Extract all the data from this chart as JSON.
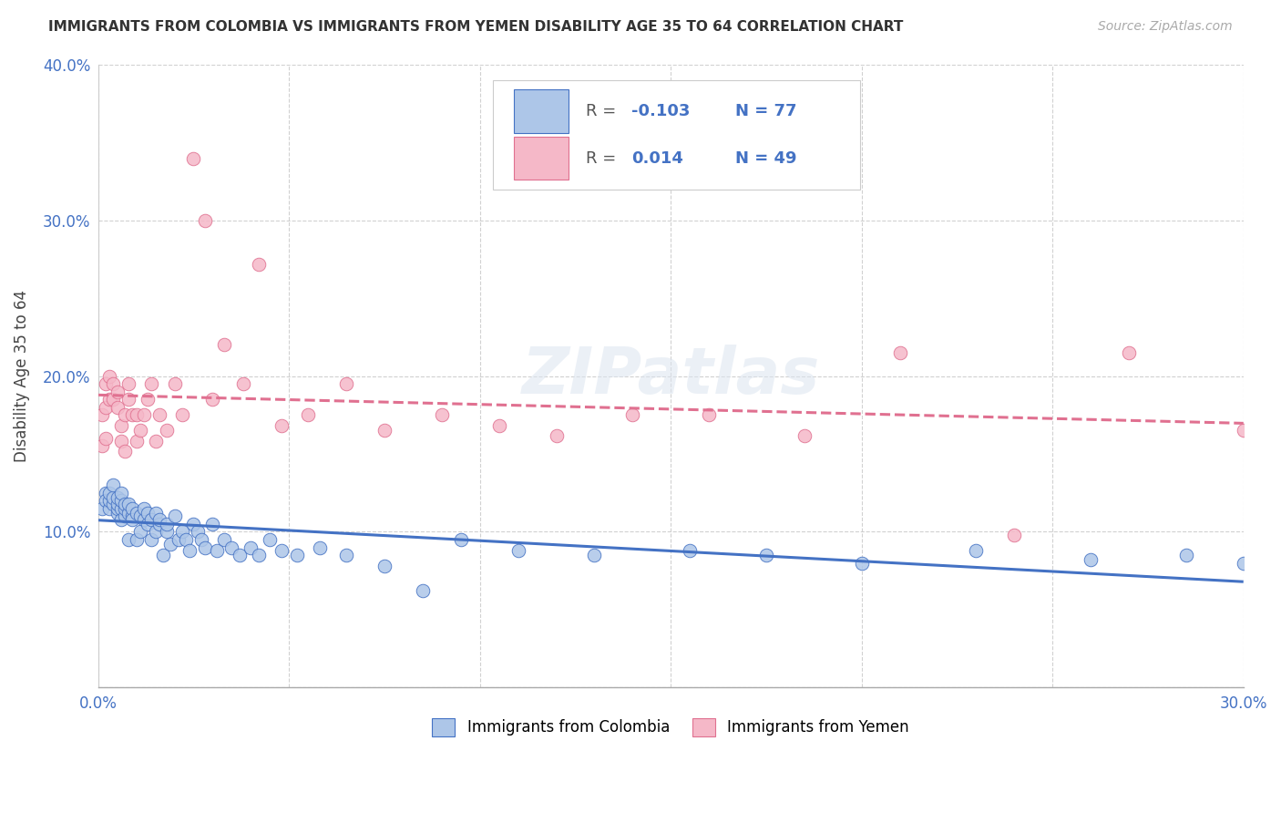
{
  "title": "IMMIGRANTS FROM COLOMBIA VS IMMIGRANTS FROM YEMEN DISABILITY AGE 35 TO 64 CORRELATION CHART",
  "source": "Source: ZipAtlas.com",
  "ylabel": "Disability Age 35 to 64",
  "xlim": [
    0.0,
    0.3
  ],
  "ylim": [
    0.0,
    0.4
  ],
  "xticks": [
    0.0,
    0.05,
    0.1,
    0.15,
    0.2,
    0.25,
    0.3
  ],
  "yticks": [
    0.0,
    0.1,
    0.2,
    0.3,
    0.4
  ],
  "xticklabels": [
    "0.0%",
    "",
    "",
    "",
    "",
    "",
    "30.0%"
  ],
  "yticklabels": [
    "",
    "10.0%",
    "20.0%",
    "30.0%",
    "40.0%"
  ],
  "legend_label1": "Immigrants from Colombia",
  "legend_label2": "Immigrants from Yemen",
  "r1_text": "-0.103",
  "n1_text": "77",
  "r2_text": "0.014",
  "n2_text": "49",
  "color1": "#adc6e8",
  "color2": "#f5b8c8",
  "line_color1": "#4472c4",
  "line_color2": "#e07090",
  "colombia_x": [
    0.001,
    0.002,
    0.002,
    0.003,
    0.003,
    0.003,
    0.004,
    0.004,
    0.004,
    0.005,
    0.005,
    0.005,
    0.005,
    0.006,
    0.006,
    0.006,
    0.006,
    0.007,
    0.007,
    0.007,
    0.008,
    0.008,
    0.008,
    0.009,
    0.009,
    0.009,
    0.01,
    0.01,
    0.011,
    0.011,
    0.012,
    0.012,
    0.013,
    0.013,
    0.014,
    0.014,
    0.015,
    0.015,
    0.016,
    0.016,
    0.017,
    0.018,
    0.018,
    0.019,
    0.02,
    0.021,
    0.022,
    0.023,
    0.024,
    0.025,
    0.026,
    0.027,
    0.028,
    0.03,
    0.031,
    0.033,
    0.035,
    0.037,
    0.04,
    0.042,
    0.045,
    0.048,
    0.052,
    0.058,
    0.065,
    0.075,
    0.085,
    0.095,
    0.11,
    0.13,
    0.155,
    0.175,
    0.2,
    0.23,
    0.26,
    0.285,
    0.3
  ],
  "colombia_y": [
    0.115,
    0.125,
    0.12,
    0.115,
    0.12,
    0.125,
    0.118,
    0.122,
    0.13,
    0.112,
    0.115,
    0.118,
    0.122,
    0.108,
    0.115,
    0.12,
    0.125,
    0.11,
    0.115,
    0.118,
    0.112,
    0.095,
    0.118,
    0.11,
    0.115,
    0.108,
    0.112,
    0.095,
    0.11,
    0.1,
    0.108,
    0.115,
    0.105,
    0.112,
    0.095,
    0.108,
    0.1,
    0.112,
    0.105,
    0.108,
    0.085,
    0.1,
    0.105,
    0.092,
    0.11,
    0.095,
    0.1,
    0.095,
    0.088,
    0.105,
    0.1,
    0.095,
    0.09,
    0.105,
    0.088,
    0.095,
    0.09,
    0.085,
    0.09,
    0.085,
    0.095,
    0.088,
    0.085,
    0.09,
    0.085,
    0.078,
    0.062,
    0.095,
    0.088,
    0.085,
    0.088,
    0.085,
    0.08,
    0.088,
    0.082,
    0.085,
    0.08
  ],
  "yemen_x": [
    0.001,
    0.001,
    0.002,
    0.002,
    0.002,
    0.003,
    0.003,
    0.004,
    0.004,
    0.005,
    0.005,
    0.006,
    0.006,
    0.007,
    0.007,
    0.008,
    0.008,
    0.009,
    0.01,
    0.01,
    0.011,
    0.012,
    0.013,
    0.014,
    0.015,
    0.016,
    0.018,
    0.02,
    0.022,
    0.025,
    0.028,
    0.03,
    0.033,
    0.038,
    0.042,
    0.048,
    0.055,
    0.065,
    0.075,
    0.09,
    0.105,
    0.12,
    0.14,
    0.16,
    0.185,
    0.21,
    0.24,
    0.27,
    0.3
  ],
  "yemen_y": [
    0.155,
    0.175,
    0.16,
    0.18,
    0.195,
    0.185,
    0.2,
    0.185,
    0.195,
    0.18,
    0.19,
    0.158,
    0.168,
    0.152,
    0.175,
    0.185,
    0.195,
    0.175,
    0.158,
    0.175,
    0.165,
    0.175,
    0.185,
    0.195,
    0.158,
    0.175,
    0.165,
    0.195,
    0.175,
    0.34,
    0.3,
    0.185,
    0.22,
    0.195,
    0.272,
    0.168,
    0.175,
    0.195,
    0.165,
    0.175,
    0.168,
    0.162,
    0.175,
    0.175,
    0.162,
    0.215,
    0.098,
    0.215,
    0.165
  ]
}
